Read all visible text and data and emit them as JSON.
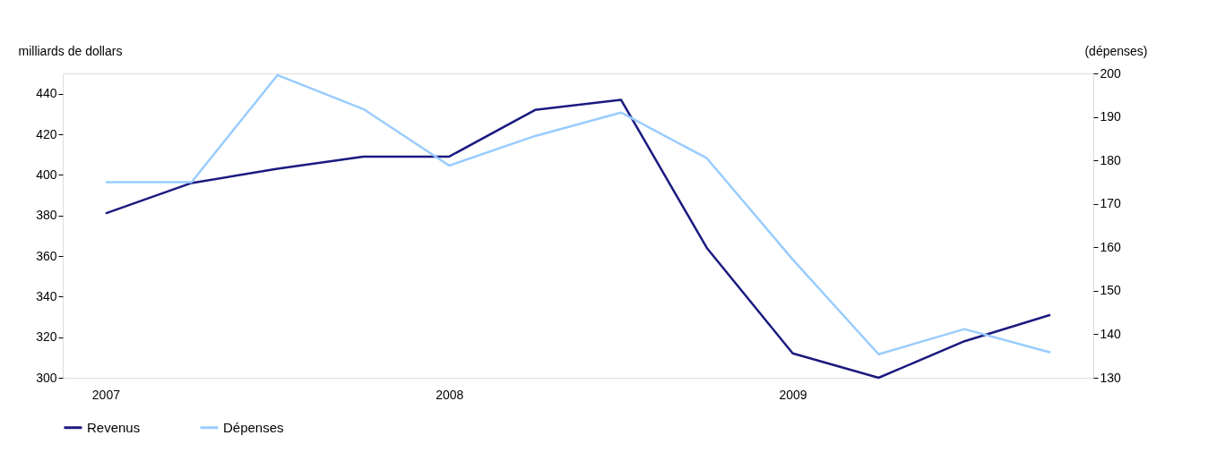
{
  "chart_data": {
    "type": "line",
    "categories": [
      "2007",
      null,
      null,
      null,
      "2008",
      null,
      null,
      null,
      "2009",
      null,
      null,
      null
    ],
    "ylabel": "milliards de dollars",
    "y2label": "(dépenses)",
    "ylim": [
      300,
      450
    ],
    "yticks": [
      300,
      320,
      340,
      360,
      380,
      400,
      420,
      440
    ],
    "y2lim": [
      130,
      200
    ],
    "y2ticks": [
      130,
      140,
      150,
      160,
      170,
      180,
      190,
      200
    ],
    "series": [
      {
        "name": "Revenus",
        "color": "#1a1a80",
        "values": [
          381,
          396,
          403,
          409,
          409,
          432,
          437,
          364,
          312,
          300,
          318,
          331
        ]
      },
      {
        "name": "Dépenses",
        "color": "#99ccff",
        "axis": "y2",
        "values": [
          175,
          175,
          199.6,
          191.8,
          178.8,
          185.6,
          191,
          180.5,
          157.2,
          135.4,
          141.2,
          135.8
        ]
      }
    ],
    "legend": "bottom",
    "grid": false,
    "line_style": "solid"
  }
}
